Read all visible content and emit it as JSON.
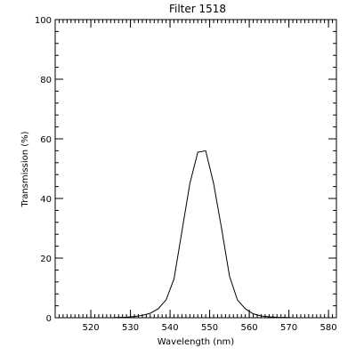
{
  "chart_data": {
    "type": "line",
    "title": "Filter 1518",
    "xlabel": "Wavelength (nm)",
    "ylabel": "Transmission (%)",
    "xlim": [
      511,
      582
    ],
    "ylim": [
      0,
      100
    ],
    "x_ticks": [
      520,
      530,
      540,
      550,
      560,
      570,
      580
    ],
    "x_tick_labels": [
      "520",
      "530",
      "540",
      "550",
      "560",
      "570",
      "580"
    ],
    "y_ticks": [
      0,
      20,
      40,
      60,
      80,
      100
    ],
    "y_tick_labels": [
      "0",
      "20",
      "40",
      "60",
      "80",
      "100"
    ],
    "x_minor_step": 1,
    "y_minor_step": 4,
    "grid": false,
    "legend": "none",
    "line_color": "#000000",
    "series": [
      {
        "x": [
          525,
          527,
          529,
          531,
          533,
          535,
          537,
          539,
          541,
          543,
          545,
          547,
          549,
          551,
          553,
          555,
          557,
          559,
          561,
          563,
          565,
          567,
          569,
          571
        ],
        "y": [
          0,
          0.1,
          0.2,
          0.4,
          0.8,
          1.5,
          3,
          6,
          13,
          29,
          45,
          55.5,
          56,
          45,
          30,
          14,
          6,
          3,
          1.3,
          0.6,
          0.3,
          0.15,
          0.1,
          0
        ]
      }
    ]
  }
}
